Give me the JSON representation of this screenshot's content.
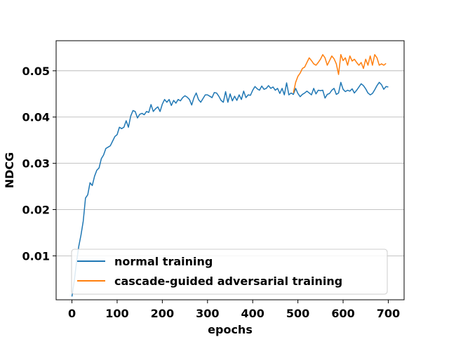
{
  "chart_data": {
    "type": "line",
    "title": "",
    "xlabel": "epochs",
    "ylabel": "NDCG",
    "xlim": [
      -35,
      735
    ],
    "ylim": [
      0.0005,
      0.0565
    ],
    "xticks": [
      0,
      100,
      200,
      300,
      400,
      500,
      600,
      700
    ],
    "xtick_labels": [
      "0",
      "100",
      "200",
      "300",
      "400",
      "500",
      "600",
      "700"
    ],
    "yticks": [
      0.01,
      0.02,
      0.03,
      0.04,
      0.05
    ],
    "ytick_labels": [
      "0.01",
      "0.02",
      "0.03",
      "0.04",
      "0.05"
    ],
    "grid": "horizontal",
    "legend_position": "lower-right",
    "series": [
      {
        "name": "normal training",
        "color": "#1f77b4",
        "x": [
          0,
          5,
          10,
          15,
          20,
          25,
          30,
          35,
          40,
          45,
          50,
          55,
          60,
          65,
          70,
          75,
          80,
          85,
          90,
          95,
          100,
          105,
          110,
          115,
          120,
          125,
          130,
          135,
          140,
          145,
          150,
          155,
          160,
          165,
          170,
          175,
          180,
          185,
          190,
          195,
          200,
          205,
          210,
          215,
          220,
          225,
          230,
          235,
          240,
          245,
          250,
          255,
          260,
          265,
          270,
          275,
          280,
          285,
          290,
          295,
          300,
          305,
          310,
          315,
          320,
          325,
          330,
          335,
          340,
          345,
          350,
          355,
          360,
          365,
          370,
          375,
          380,
          385,
          390,
          395,
          400,
          405,
          410,
          415,
          420,
          425,
          430,
          435,
          440,
          445,
          450,
          455,
          460,
          465,
          470,
          475,
          480,
          485,
          490,
          495,
          500,
          505,
          510,
          515,
          520,
          525,
          530,
          535,
          540,
          545,
          550,
          555,
          560,
          565,
          570,
          575,
          580,
          585,
          590,
          595,
          600,
          605,
          610,
          615,
          620,
          625,
          630,
          635,
          640,
          645,
          650,
          655,
          660,
          665,
          670,
          675,
          680,
          685,
          690,
          695,
          700
        ],
        "y": [
          0.0012,
          0.0045,
          0.0085,
          0.012,
          0.0145,
          0.0175,
          0.0225,
          0.0232,
          0.0258,
          0.0252,
          0.0272,
          0.0285,
          0.029,
          0.031,
          0.0318,
          0.0332,
          0.0335,
          0.0338,
          0.0348,
          0.0358,
          0.0362,
          0.0378,
          0.0375,
          0.0378,
          0.0392,
          0.0378,
          0.0402,
          0.0414,
          0.0412,
          0.0398,
          0.0406,
          0.0408,
          0.0405,
          0.0412,
          0.041,
          0.0427,
          0.0412,
          0.0418,
          0.0422,
          0.0412,
          0.0428,
          0.0438,
          0.0432,
          0.0438,
          0.0425,
          0.0436,
          0.043,
          0.0438,
          0.0435,
          0.0442,
          0.0446,
          0.0443,
          0.0438,
          0.0426,
          0.0442,
          0.0452,
          0.0438,
          0.0432,
          0.044,
          0.0448,
          0.0448,
          0.0445,
          0.0442,
          0.0453,
          0.0452,
          0.0445,
          0.0436,
          0.0432,
          0.0455,
          0.0432,
          0.045,
          0.0435,
          0.0445,
          0.0436,
          0.0448,
          0.0438,
          0.0456,
          0.0442,
          0.0448,
          0.0447,
          0.0458,
          0.0466,
          0.0461,
          0.0458,
          0.0467,
          0.046,
          0.0462,
          0.0468,
          0.0462,
          0.0465,
          0.0458,
          0.0462,
          0.0451,
          0.0462,
          0.0448,
          0.0474,
          0.0448,
          0.0452,
          0.0449,
          0.0462,
          0.0451,
          0.0444,
          0.0449,
          0.0452,
          0.0456,
          0.0452,
          0.0448,
          0.0462,
          0.045,
          0.0458,
          0.0457,
          0.0458,
          0.0441,
          0.0449,
          0.0451,
          0.0458,
          0.0462,
          0.0449,
          0.0452,
          0.0475,
          0.046,
          0.0455,
          0.0458,
          0.0456,
          0.0461,
          0.0452,
          0.0458,
          0.0465,
          0.0472,
          0.0468,
          0.0461,
          0.0452,
          0.0448,
          0.0451,
          0.0459,
          0.0468,
          0.0475,
          0.047,
          0.046,
          0.0466,
          0.0465
        ]
      },
      {
        "name": "cascade-guided adversarial training",
        "color": "#ff7f0e",
        "x": [
          490,
          495,
          500,
          505,
          510,
          515,
          520,
          525,
          530,
          535,
          540,
          545,
          550,
          555,
          560,
          565,
          570,
          575,
          580,
          585,
          590,
          595,
          600,
          605,
          610,
          615,
          620,
          625,
          630,
          635,
          640,
          645,
          650,
          655,
          660,
          665,
          670,
          675,
          680,
          685,
          690,
          695
        ],
        "y": [
          0.0452,
          0.0475,
          0.0488,
          0.0495,
          0.0505,
          0.0508,
          0.0518,
          0.0528,
          0.0522,
          0.0515,
          0.0512,
          0.0518,
          0.0525,
          0.0535,
          0.0528,
          0.0512,
          0.0522,
          0.0532,
          0.0526,
          0.0515,
          0.0492,
          0.0535,
          0.0522,
          0.0528,
          0.0512,
          0.0532,
          0.0521,
          0.0525,
          0.0518,
          0.0512,
          0.0518,
          0.0505,
          0.0525,
          0.0512,
          0.0532,
          0.0512,
          0.0535,
          0.0528,
          0.0512,
          0.0515,
          0.0512,
          0.0516
        ]
      }
    ]
  }
}
